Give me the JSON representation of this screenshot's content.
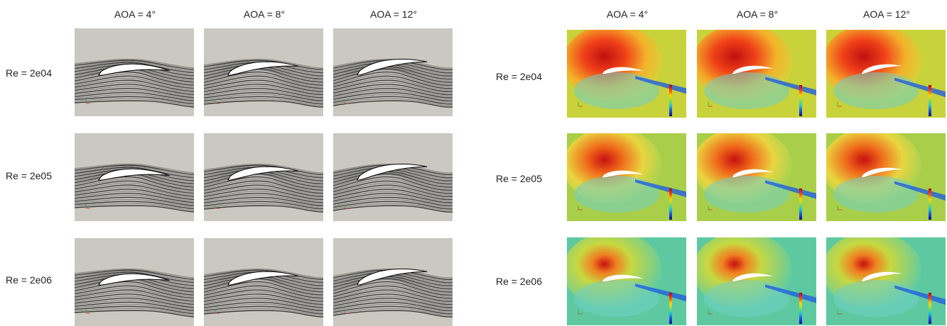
{
  "figure": {
    "left_block": {
      "column_headers": [
        "AOA = 4°",
        "AOA = 8°",
        "AOA = 12°"
      ],
      "row_headers": [
        "Re = 2e04",
        "Re = 2e05",
        "Re = 2e06"
      ],
      "panel_style": "streamline-contours-grayscale",
      "background_color": "#cbc8c1"
    },
    "right_block": {
      "column_headers": [
        "AOA = 4°",
        "AOA = 8°",
        "AOA = 12°"
      ],
      "row_headers": [
        "Re = 2e04",
        "Re = 2e05",
        "Re = 2e06"
      ],
      "panel_style": "velocity-magnitude-colormap",
      "colormap": [
        "#b30000",
        "#ff4000",
        "#ffd200",
        "#8ae04f",
        "#19c4d8",
        "#1a4fe0",
        "#0a0a9a"
      ]
    }
  }
}
